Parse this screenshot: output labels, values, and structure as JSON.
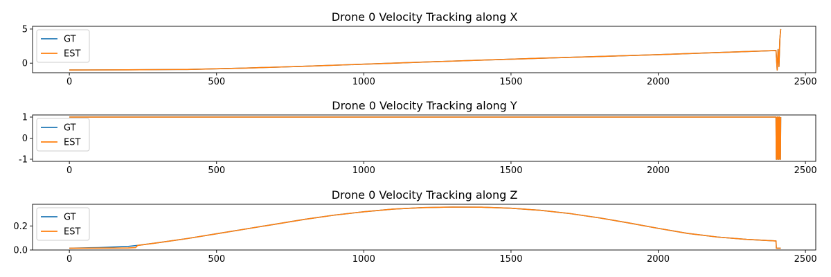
{
  "colors": {
    "gt": "#1f77b4",
    "est": "#ff7f0e"
  },
  "chart_data": [
    {
      "type": "line",
      "title": "Drone 0 Velocity Tracking along X",
      "xlim": [
        -125,
        2535
      ],
      "ylim": [
        -1.4,
        5.4
      ],
      "xticks": [
        0,
        500,
        1000,
        1500,
        2000,
        2500
      ],
      "yticks": [
        0,
        5
      ],
      "grid": false,
      "legend_position": "upper-left",
      "series": [
        {
          "name": "GT",
          "x": [
            0,
            200,
            400,
            600,
            800,
            1000,
            1200,
            1400,
            1600,
            1800,
            2000,
            2200,
            2400,
            2404,
            2407,
            2410,
            2413,
            2416
          ],
          "y": [
            -1.0,
            -0.98,
            -0.92,
            -0.72,
            -0.45,
            -0.15,
            0.15,
            0.45,
            0.72,
            0.98,
            1.25,
            1.55,
            1.85,
            -1.0,
            2.0,
            -0.5,
            3.5,
            5.0
          ]
        },
        {
          "name": "EST",
          "x": [
            0,
            200,
            400,
            600,
            800,
            1000,
            1200,
            1400,
            1600,
            1800,
            2000,
            2200,
            2400,
            2404,
            2407,
            2410,
            2413,
            2416
          ],
          "y": [
            -1.0,
            -0.98,
            -0.92,
            -0.72,
            -0.45,
            -0.15,
            0.15,
            0.45,
            0.72,
            0.98,
            1.25,
            1.55,
            1.85,
            -1.0,
            2.0,
            -0.5,
            3.5,
            5.0
          ]
        }
      ]
    },
    {
      "type": "line",
      "title": "Drone 0 Velocity Tracking along Y",
      "xlim": [
        -125,
        2535
      ],
      "ylim": [
        -1.1,
        1.1
      ],
      "xticks": [
        0,
        500,
        1000,
        1500,
        2000,
        2500
      ],
      "yticks": [
        -1,
        0,
        1
      ],
      "grid": false,
      "legend_position": "upper-left",
      "series": [
        {
          "name": "GT",
          "x": [
            0,
            2400,
            2401,
            2403,
            2404,
            2406,
            2407,
            2409,
            2410,
            2412,
            2413,
            2415,
            2416
          ],
          "y": [
            1,
            1,
            -1,
            -1,
            1,
            1,
            -1,
            -1,
            1,
            1,
            -1,
            -1,
            1
          ]
        },
        {
          "name": "EST",
          "x": [
            0,
            2400,
            2401,
            2403,
            2404,
            2406,
            2407,
            2409,
            2410,
            2412,
            2413,
            2415,
            2416
          ],
          "y": [
            1,
            1,
            -1,
            -1,
            1,
            1,
            -1,
            -1,
            1,
            1,
            -1,
            -1,
            1
          ]
        }
      ]
    },
    {
      "type": "line",
      "title": "Drone 0 Velocity Tracking along Z",
      "xlim": [
        -125,
        2535
      ],
      "ylim": [
        0.0,
        0.38
      ],
      "xticks": [
        0,
        500,
        1000,
        1500,
        2000,
        2500
      ],
      "yticks": [
        0.0,
        0.2
      ],
      "grid": false,
      "legend_position": "upper-left",
      "series": [
        {
          "name": "GT",
          "x": [
            0,
            100,
            200,
            230,
            300,
            400,
            500,
            600,
            700,
            800,
            900,
            1000,
            1100,
            1200,
            1300,
            1400,
            1500,
            1600,
            1700,
            1800,
            1900,
            2000,
            2100,
            2200,
            2300,
            2400,
            2401,
            2416
          ],
          "y": [
            0.015,
            0.02,
            0.03,
            0.038,
            0.06,
            0.095,
            0.135,
            0.175,
            0.215,
            0.255,
            0.29,
            0.318,
            0.34,
            0.352,
            0.357,
            0.356,
            0.347,
            0.33,
            0.303,
            0.267,
            0.225,
            0.18,
            0.138,
            0.108,
            0.088,
            0.075,
            0.015,
            0.015
          ]
        },
        {
          "name": "EST",
          "x": [
            0,
            200,
            225,
            232,
            300,
            400,
            500,
            600,
            700,
            800,
            900,
            1000,
            1100,
            1200,
            1300,
            1400,
            1500,
            1600,
            1700,
            1800,
            1900,
            2000,
            2100,
            2200,
            2300,
            2400,
            2401,
            2416
          ],
          "y": [
            0.015,
            0.017,
            0.02,
            0.038,
            0.06,
            0.095,
            0.135,
            0.175,
            0.215,
            0.255,
            0.29,
            0.318,
            0.34,
            0.352,
            0.357,
            0.356,
            0.347,
            0.33,
            0.303,
            0.267,
            0.225,
            0.18,
            0.138,
            0.108,
            0.088,
            0.075,
            0.015,
            0.015
          ]
        }
      ]
    }
  ]
}
